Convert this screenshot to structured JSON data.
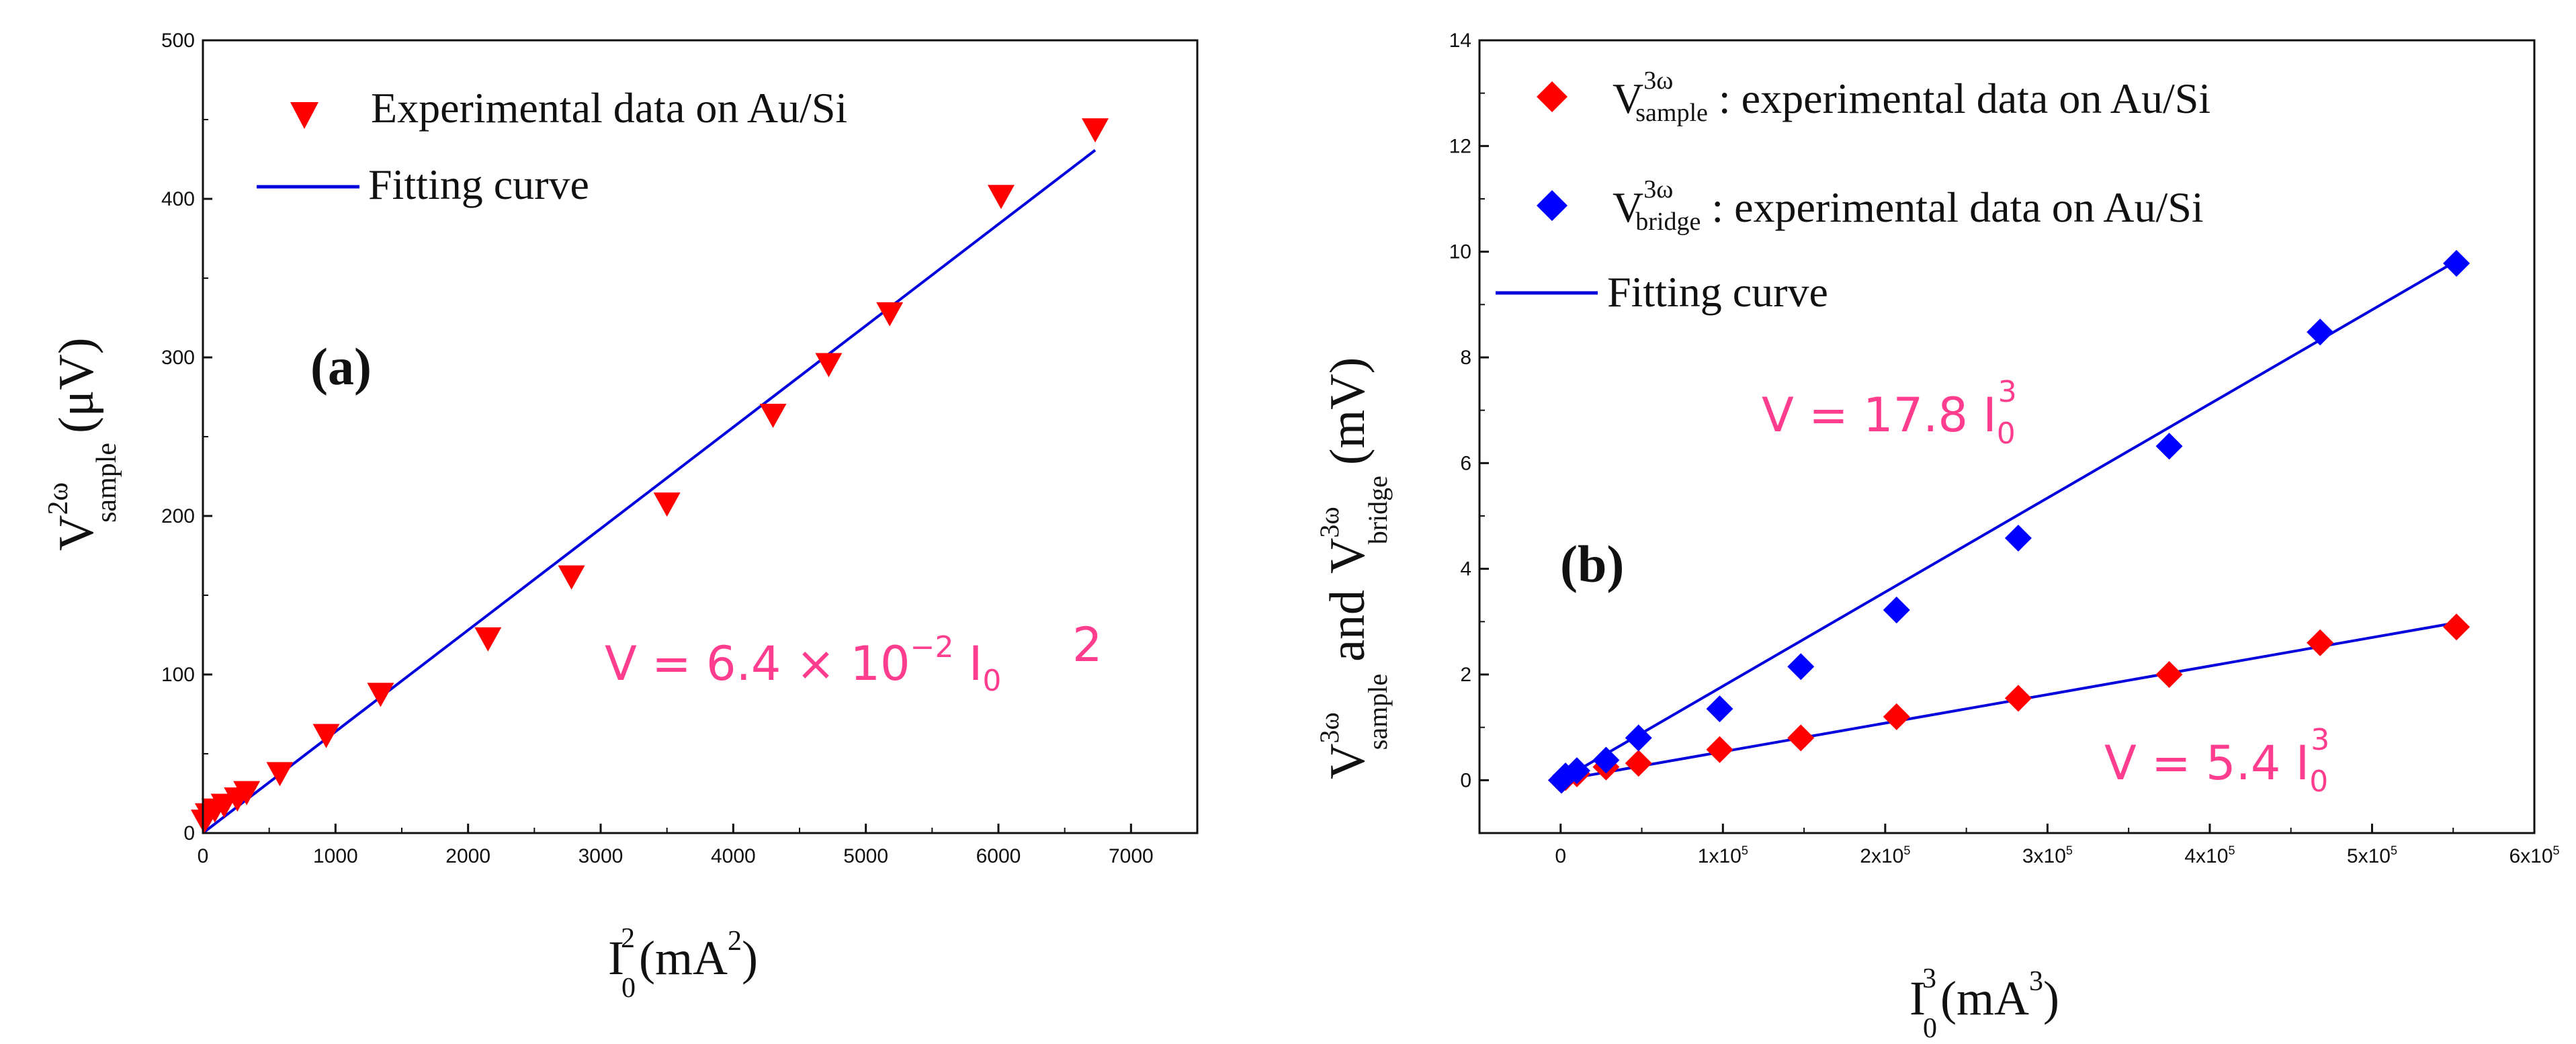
{
  "chart_data": [
    {
      "type": "scatter",
      "panel_label": "(a)",
      "xlabel": "I",
      "xlabel_sub": "0",
      "xlabel_sup": "2",
      "xlabel_unit_pre": "(mA",
      "xlabel_unit_sup": "2",
      "xlabel_unit_post": ")",
      "ylabel": "V",
      "ylabel_sup": "2ω",
      "ylabel_sub": "sample",
      "ylabel_unit": "(μV)",
      "xlim": [
        0,
        7500
      ],
      "ylim": [
        0,
        500
      ],
      "xticks": [
        "0",
        "1000",
        "2000",
        "3000",
        "4000",
        "5000",
        "6000",
        "7000"
      ],
      "yticks": [
        "0",
        "100",
        "200",
        "300",
        "400",
        "500"
      ],
      "series": [
        {
          "name": "Experimental data on Au/Si",
          "color": "#ff0000",
          "marker": "down-triangle",
          "x": [
            10,
            40,
            90,
            160,
            260,
            330,
            580,
            930,
            1340,
            2150,
            2780,
            3500,
            4300,
            4720,
            5180,
            6020,
            6730
          ],
          "y": [
            8,
            12,
            15,
            18,
            22,
            26,
            38,
            62,
            88,
            123,
            162,
            208,
            264,
            296,
            328,
            402,
            444
          ]
        }
      ],
      "fit": {
        "name": "Fitting curve",
        "color": "#0000dd",
        "slope": 0.064,
        "x_range": [
          0,
          6730
        ]
      },
      "equation": {
        "lead": "V = 6.4 × 10",
        "exp": "−2",
        "tail": " I",
        "tail_sub": "0",
        "tail_sup": "2"
      }
    },
    {
      "type": "scatter",
      "panel_label": "(b)",
      "xlabel": "I",
      "xlabel_sub": "0",
      "xlabel_sup": "3",
      "xlabel_unit_pre": "(mA",
      "xlabel_unit_sup": "3",
      "xlabel_unit_post": ")",
      "ylabel_sample_base": "V",
      "ylabel_sample_sup": "3ω",
      "ylabel_sample_sub": "sample",
      "ylabel_and": "and",
      "ylabel_bridge_base": "V",
      "ylabel_bridge_sup": "3ω",
      "ylabel_bridge_sub": "bridge",
      "ylabel_unit": "(mV)",
      "xlim": [
        -50000,
        600000
      ],
      "ylim": [
        -1,
        14
      ],
      "xtick_values": [
        0,
        100000,
        200000,
        300000,
        400000,
        500000,
        600000
      ],
      "xticks_base": [
        "0",
        "1x10",
        "2x10",
        "3x10",
        "4x10",
        "5x10",
        "6x10"
      ],
      "xticks_exp": [
        "",
        "5",
        "5",
        "5",
        "5",
        "5",
        "5"
      ],
      "yticks": [
        "0",
        "2",
        "4",
        "6",
        "8",
        "10",
        "12",
        "14"
      ],
      "series": [
        {
          "name_base": "V",
          "name_sup": "3ω",
          "name_sub": "sample",
          "name_text": " : experimental data on Au/Si",
          "color": "#ff0000",
          "marker": "diamond",
          "x": [
            500,
            3000,
            10000,
            28000,
            48000,
            98000,
            148000,
            207000,
            282000,
            375000,
            468000,
            552000
          ],
          "y": [
            0.0,
            0.05,
            0.12,
            0.25,
            0.32,
            0.58,
            0.8,
            1.2,
            1.55,
            2.0,
            2.6,
            2.9
          ]
        },
        {
          "name_base": "V",
          "name_sup": "3ω",
          "name_sub": "bridge",
          "name_text": " : experimental data on Au/Si",
          "color": "#0000ff",
          "marker": "diamond",
          "x": [
            500,
            3000,
            10000,
            28000,
            48000,
            98000,
            148000,
            207000,
            282000,
            375000,
            468000,
            552000
          ],
          "y": [
            0.0,
            0.08,
            0.18,
            0.38,
            0.8,
            1.35,
            2.15,
            3.22,
            4.58,
            6.32,
            8.48,
            9.78
          ]
        }
      ],
      "fits": [
        {
          "name": "Fitting curve",
          "color": "#0000dd",
          "slope_per_1e5": 1.78,
          "x_range": [
            0,
            552000
          ]
        },
        {
          "color": "#0000dd",
          "slope_per_1e5": 0.54,
          "x_range": [
            0,
            552000
          ]
        }
      ],
      "equations": [
        {
          "lead": "V = 17.8 I",
          "sub": "0",
          "sup": "3"
        },
        {
          "lead": "V = 5.4 I",
          "sub": "0",
          "sup": "3"
        }
      ]
    }
  ]
}
